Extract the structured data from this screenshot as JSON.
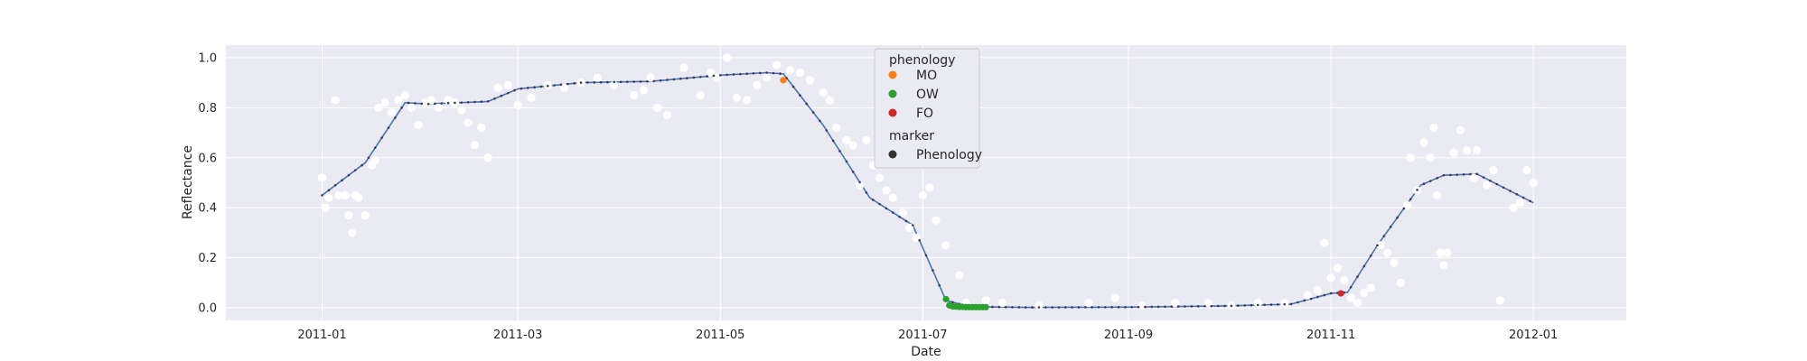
{
  "chart_data": {
    "type": "scatter",
    "xlabel": "Date",
    "ylabel": "Reflectance",
    "xlim": [
      "2010-12-03",
      "2012-01-29"
    ],
    "ylim": [
      -0.05,
      1.05
    ],
    "grid": true,
    "style": "seaborn-darkgrid",
    "background_color": "#eaeaf2",
    "x_ticks": [
      "2011-01",
      "2011-03",
      "2011-05",
      "2011-07",
      "2011-09",
      "2011-11",
      "2012-01"
    ],
    "y_ticks": [
      "0.0",
      "0.2",
      "0.4",
      "0.6",
      "0.8",
      "1.0"
    ],
    "fitted_curve": {
      "color": "#4c72b0",
      "marker_color": "#3a3a5a",
      "x": [
        "2011-01-01",
        "2011-01-14",
        "2011-01-26",
        "2011-02-02",
        "2011-02-20",
        "2011-03-01",
        "2011-03-20",
        "2011-04-10",
        "2011-05-01",
        "2011-05-15",
        "2011-05-20",
        "2011-06-01",
        "2011-06-15",
        "2011-06-28",
        "2011-07-08",
        "2011-07-15",
        "2011-08-01",
        "2011-09-01",
        "2011-10-01",
        "2011-10-20",
        "2011-11-01",
        "2011-11-06",
        "2011-11-15",
        "2011-11-28",
        "2011-12-05",
        "2011-12-15",
        "2012-01-01"
      ],
      "y": [
        0.45,
        0.58,
        0.82,
        0.815,
        0.825,
        0.875,
        0.9,
        0.905,
        0.93,
        0.94,
        0.935,
        0.73,
        0.44,
        0.33,
        0.03,
        0.005,
        0.002,
        0.003,
        0.008,
        0.015,
        0.058,
        0.062,
        0.25,
        0.49,
        0.53,
        0.535,
        0.42
      ]
    },
    "observations": {
      "color": "#ffffff",
      "x": [
        "2011-01-01",
        "2011-01-02",
        "2011-01-03",
        "2011-01-05",
        "2011-01-06",
        "2011-01-08",
        "2011-01-09",
        "2011-01-10",
        "2011-01-11",
        "2011-01-12",
        "2011-01-14",
        "2011-01-16",
        "2011-01-17",
        "2011-01-18",
        "2011-01-20",
        "2011-01-22",
        "2011-01-24",
        "2011-01-26",
        "2011-01-28",
        "2011-01-30",
        "2011-02-01",
        "2011-02-03",
        "2011-02-05",
        "2011-02-08",
        "2011-02-10",
        "2011-02-12",
        "2011-02-14",
        "2011-02-16",
        "2011-02-18",
        "2011-02-20",
        "2011-02-23",
        "2011-02-26",
        "2011-03-01",
        "2011-03-05",
        "2011-03-10",
        "2011-03-15",
        "2011-03-20",
        "2011-03-25",
        "2011-03-30",
        "2011-04-05",
        "2011-04-08",
        "2011-04-10",
        "2011-04-12",
        "2011-04-15",
        "2011-04-20",
        "2011-04-25",
        "2011-04-28",
        "2011-04-30",
        "2011-05-03",
        "2011-05-06",
        "2011-05-09",
        "2011-05-12",
        "2011-05-15",
        "2011-05-18",
        "2011-05-22",
        "2011-05-25",
        "2011-05-28",
        "2011-06-01",
        "2011-06-03",
        "2011-06-05",
        "2011-06-08",
        "2011-06-10",
        "2011-06-12",
        "2011-06-14",
        "2011-06-16",
        "2011-06-18",
        "2011-06-20",
        "2011-06-22",
        "2011-06-25",
        "2011-06-27",
        "2011-06-29",
        "2011-07-01",
        "2011-07-03",
        "2011-07-05",
        "2011-07-08",
        "2011-07-12",
        "2011-07-14",
        "2011-07-20",
        "2011-07-25",
        "2011-08-05",
        "2011-08-20",
        "2011-08-28",
        "2011-09-05",
        "2011-09-15",
        "2011-09-25",
        "2011-10-02",
        "2011-10-10",
        "2011-10-18",
        "2011-10-25",
        "2011-10-28",
        "2011-10-30",
        "2011-11-01",
        "2011-11-03",
        "2011-11-05",
        "2011-11-07",
        "2011-11-09",
        "2011-11-11",
        "2011-11-13",
        "2011-11-16",
        "2011-11-18",
        "2011-11-20",
        "2011-11-22",
        "2011-11-24",
        "2011-11-25",
        "2011-11-27",
        "2011-11-29",
        "2011-12-01",
        "2011-12-02",
        "2011-12-03",
        "2011-12-04",
        "2011-12-05",
        "2011-12-06",
        "2011-12-08",
        "2011-12-10",
        "2011-12-12",
        "2011-12-14",
        "2011-12-15",
        "2011-12-18",
        "2011-12-20",
        "2011-12-22",
        "2011-12-26",
        "2011-12-28",
        "2011-12-30",
        "2012-01-01"
      ],
      "y": [
        0.52,
        0.4,
        0.44,
        0.83,
        0.45,
        0.45,
        0.37,
        0.3,
        0.45,
        0.44,
        0.37,
        0.57,
        0.59,
        0.8,
        0.82,
        0.78,
        0.83,
        0.85,
        0.8,
        0.73,
        0.82,
        0.83,
        0.8,
        0.83,
        0.82,
        0.79,
        0.74,
        0.65,
        0.72,
        0.6,
        0.88,
        0.89,
        0.81,
        0.84,
        0.89,
        0.88,
        0.9,
        0.92,
        0.89,
        0.85,
        0.87,
        0.92,
        0.8,
        0.77,
        0.96,
        0.85,
        0.94,
        0.92,
        1.0,
        0.84,
        0.83,
        0.89,
        0.92,
        0.97,
        0.95,
        0.94,
        0.91,
        0.86,
        0.83,
        0.72,
        0.67,
        0.65,
        0.49,
        0.67,
        0.57,
        0.52,
        0.47,
        0.44,
        0.38,
        0.32,
        0.28,
        0.45,
        0.48,
        0.35,
        0.25,
        0.13,
        0.02,
        0.03,
        0.02,
        0.01,
        0.02,
        0.04,
        0.01,
        0.02,
        0.02,
        0.01,
        0.02,
        0.02,
        0.05,
        0.07,
        0.26,
        0.12,
        0.16,
        0.11,
        0.04,
        0.02,
        0.06,
        0.08,
        0.25,
        0.22,
        0.18,
        0.1,
        0.41,
        0.6,
        0.47,
        0.66,
        0.6,
        0.72,
        0.45,
        0.22,
        0.17,
        0.22,
        0.62,
        0.71,
        0.63,
        0.52,
        0.63,
        0.49,
        0.55,
        0.03,
        0.4,
        0.42,
        0.55,
        0.5
      ]
    },
    "phenology_points": [
      {
        "label": "MO",
        "color": "#ff7f0e",
        "x": [
          "2011-05-20"
        ],
        "y": [
          0.91
        ]
      },
      {
        "label": "OW",
        "color": "#2ca02c",
        "x": [
          "2011-07-08",
          "2011-07-09",
          "2011-07-10",
          "2011-07-11",
          "2011-07-12",
          "2011-07-13",
          "2011-07-14",
          "2011-07-15",
          "2011-07-16",
          "2011-07-17",
          "2011-07-18",
          "2011-07-19",
          "2011-07-20"
        ],
        "y": [
          0.035,
          0.01,
          0.006,
          0.005,
          0.004,
          0.004,
          0.003,
          0.003,
          0.003,
          0.003,
          0.003,
          0.003,
          0.003
        ]
      },
      {
        "label": "FO",
        "color": "#d62728",
        "x": [
          "2011-11-04"
        ],
        "y": [
          0.058
        ]
      }
    ],
    "legend": {
      "placement": "upper-center",
      "hue_title": "phenology",
      "entries": [
        {
          "label": "MO",
          "color": "#ff7f0e"
        },
        {
          "label": "OW",
          "color": "#2ca02c"
        },
        {
          "label": "FO",
          "color": "#d62728"
        }
      ],
      "style_title": "marker",
      "style_entries": [
        {
          "label": "Phenology",
          "color": "#333333"
        }
      ]
    }
  }
}
